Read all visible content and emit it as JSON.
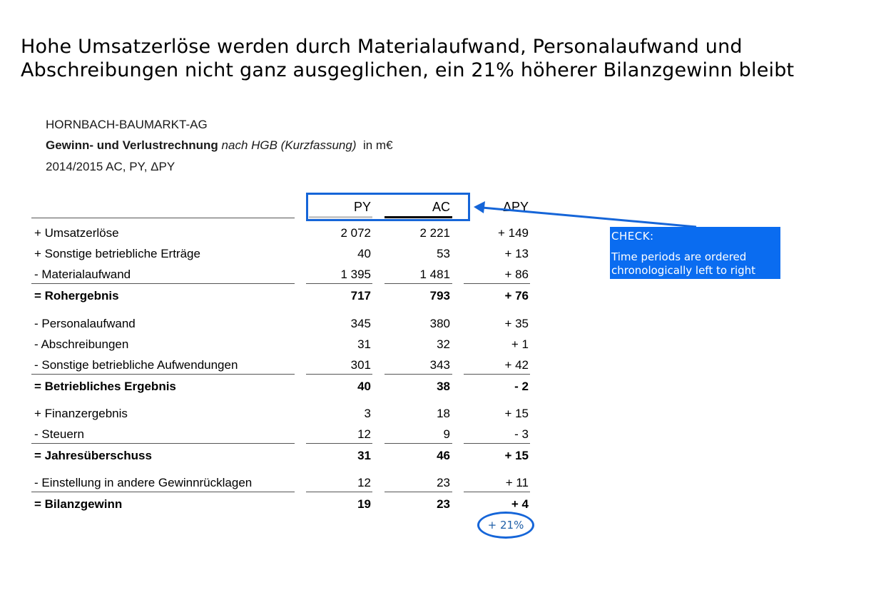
{
  "headline": {
    "line1": "Hohe Umsatzerlöse werden durch Materialaufwand, Personalaufwand und",
    "line2": "Abschreibungen nicht ganz ausgeglichen, ein 21% höherer Bilanzgewinn bleibt"
  },
  "meta": {
    "company": "HORNBACH-BAUMARKT-AG",
    "statement_bold": "Gewinn- und Verlustrechnung",
    "statement_italic": "nach HGB (Kurzfassung)",
    "unit": "in m€",
    "period": "2014/2015 AC, PY, ΔPY"
  },
  "columns": {
    "py": "PY",
    "ac": "AC",
    "dpy": "ΔPY"
  },
  "colors": {
    "py_bar": "#c8c8c8",
    "ac_bar": "#000000",
    "accent": "#1565d8",
    "callout_bg": "#0a6cf0"
  },
  "rows": [
    {
      "label": "+ Umsatzerlöse",
      "py": "2 072",
      "ac": "2 221",
      "dpy": "+ 149"
    },
    {
      "label": "+ Sonstige betriebliche Erträge",
      "py": "40",
      "ac": "53",
      "dpy": "+ 13"
    },
    {
      "label": "-  Materialaufwand",
      "py": "1 395",
      "ac": "1 481",
      "dpy": "+ 86"
    },
    {
      "label": "= Rohergebnis",
      "py": "717",
      "ac": "793",
      "dpy": "+ 76"
    },
    {
      "label": "-  Personalaufwand",
      "py": "345",
      "ac": "380",
      "dpy": "+ 35"
    },
    {
      "label": "-  Abschreibungen",
      "py": "31",
      "ac": "32",
      "dpy": "+ 1"
    },
    {
      "label": "-  Sonstige betriebliche Aufwendungen",
      "py": "301",
      "ac": "343",
      "dpy": "+ 42"
    },
    {
      "label": "= Betriebliches Ergebnis",
      "py": "40",
      "ac": "38",
      "dpy": "- 2"
    },
    {
      "label": "+ Finanzergebnis",
      "py": "3",
      "ac": "18",
      "dpy": "+ 15"
    },
    {
      "label": "-  Steuern",
      "py": "12",
      "ac": "9",
      "dpy": "- 3"
    },
    {
      "label": "= Jahresüberschuss",
      "py": "31",
      "ac": "46",
      "dpy": "+ 15"
    },
    {
      "label": "-  Einstellung in andere Gewinnrücklagen",
      "py": "12",
      "ac": "23",
      "dpy": "+ 11"
    },
    {
      "label": "= Bilanzgewinn",
      "py": "19",
      "ac": "23",
      "dpy": "+ 4"
    }
  ],
  "callout": {
    "title": "CHECK:",
    "text_line1": "Time periods are ordered",
    "text_line2": "chronologically left to right"
  },
  "highlight": "+ 21%"
}
